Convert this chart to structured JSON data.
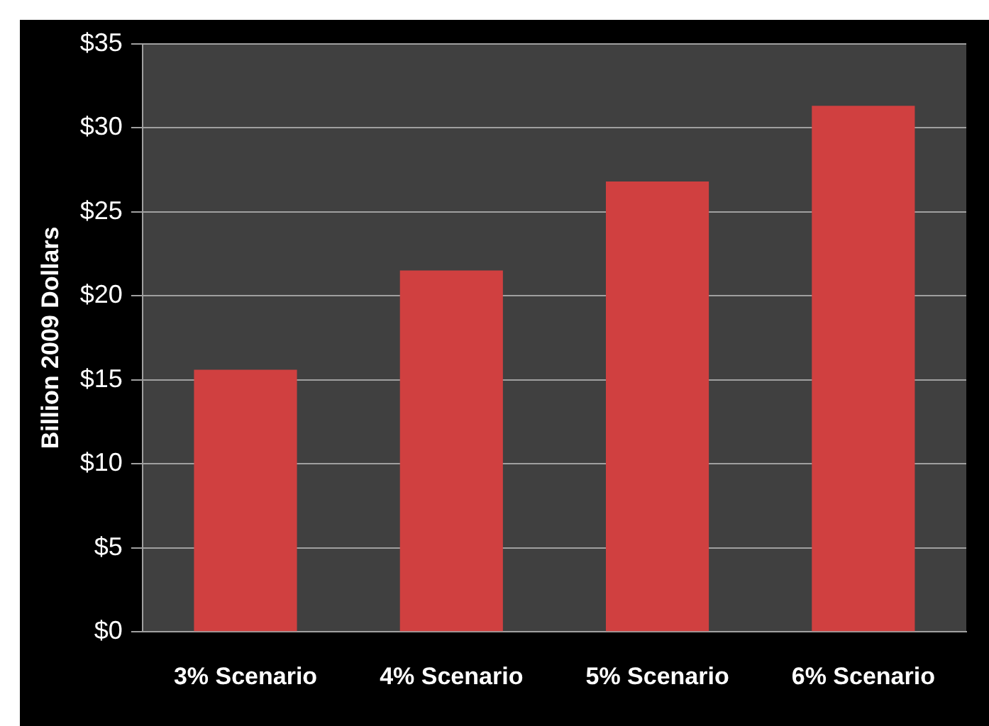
{
  "chart_data": {
    "type": "bar",
    "ylabel": "Billion 2009 Dollars",
    "categories": [
      "3% Scenario",
      "4% Scenario",
      "5% Scenario",
      "6% Scenario"
    ],
    "values": [
      15.6,
      21.5,
      26.8,
      31.3
    ],
    "color": "#d04040",
    "ylim": [
      0,
      35
    ],
    "yticks": [
      {
        "value": 0,
        "label": "$0"
      },
      {
        "value": 5,
        "label": "$5"
      },
      {
        "value": 10,
        "label": "$10"
      },
      {
        "value": 15,
        "label": "$15"
      },
      {
        "value": 20,
        "label": "$20"
      },
      {
        "value": 25,
        "label": "$25"
      },
      {
        "value": 30,
        "label": "$30"
      },
      {
        "value": 35,
        "label": "$35"
      }
    ],
    "grid": "y",
    "legend": false
  }
}
